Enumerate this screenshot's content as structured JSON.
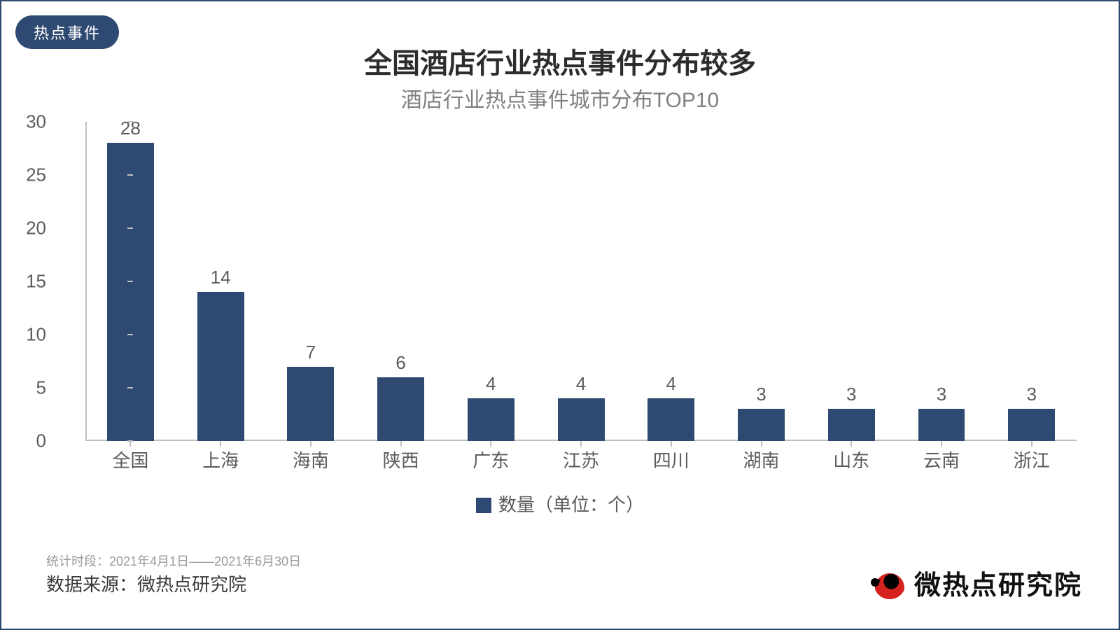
{
  "badge": "热点事件",
  "title": "全国酒店行业热点事件分布较多",
  "subtitle": "酒店行业热点事件城市分布TOP10",
  "chart": {
    "type": "bar",
    "categories": [
      "全国",
      "上海",
      "海南",
      "陕西",
      "广东",
      "江苏",
      "四川",
      "湖南",
      "山东",
      "云南",
      "浙江"
    ],
    "values": [
      28,
      14,
      7,
      6,
      4,
      4,
      4,
      3,
      3,
      3,
      3
    ],
    "bar_color": "#2f4a72",
    "ylim": [
      0,
      30
    ],
    "ytick_step": 5,
    "yticks": [
      0,
      5,
      10,
      15,
      20,
      25,
      30
    ],
    "axis_color": "#bfbfbf",
    "tick_label_color": "#5b5b5b",
    "tick_fontsize": 26,
    "value_label_fontsize": 26,
    "bar_width_ratio": 0.52,
    "background_color": "#ffffff"
  },
  "legend": {
    "label": "数量（单位：个）",
    "swatch_color": "#2f4a72"
  },
  "footnote": "统计时段：2021年4月1日——2021年6月30日",
  "source": "数据来源：微热点研究院",
  "brand": "微热点研究院",
  "colors": {
    "frame_border": "#2f4a72",
    "badge_bg": "#2f4a72",
    "badge_text": "#ffffff",
    "title_color": "#2d2d2d",
    "subtitle_color": "#808080",
    "footnote_color": "#9a9a9a",
    "source_color": "#3a3a3a",
    "brand_text": "#111111"
  },
  "typography": {
    "title_fontsize": 40,
    "title_weight": 700,
    "subtitle_fontsize": 30,
    "badge_fontsize": 22,
    "legend_fontsize": 26,
    "footnote_fontsize": 18,
    "source_fontsize": 26,
    "brand_fontsize": 38
  }
}
